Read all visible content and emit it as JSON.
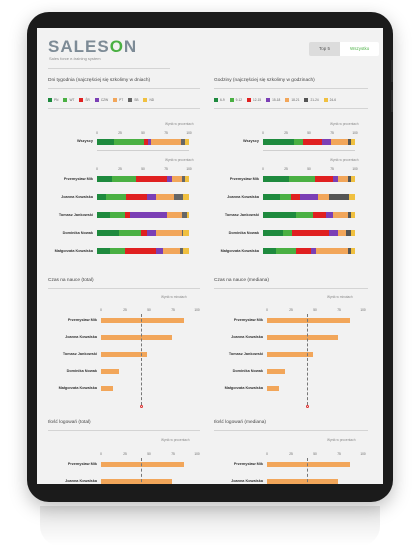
{
  "header": {
    "logo": {
      "prefix": "SALES",
      "o": "O",
      "suffix": "N"
    },
    "tagline": "Sales force e-training system",
    "tabs": [
      {
        "label": "Top 5",
        "active": false
      },
      {
        "label": "Wszystko",
        "active": true
      }
    ]
  },
  "colors": {
    "accent": "#4ab043",
    "bar": "#f2a65a",
    "days": [
      "#1e8a3e",
      "#4ab043",
      "#e02020",
      "#7b3fb5",
      "#f2a65a",
      "#666666",
      "#f0c040"
    ],
    "hours": [
      "#1e8a3e",
      "#4ab043",
      "#e02020",
      "#7b3fb5",
      "#f2a65a",
      "#555555",
      "#f0c040"
    ]
  },
  "panels": {
    "days": {
      "title": "Dni tygodnia (najczęściej się szkolimy w dniach)",
      "legend": [
        "PN",
        "WT",
        "ŚR",
        "CZW",
        "PT",
        "SB",
        "ND"
      ],
      "axis_caption": "Wynik w procentach",
      "ticks": [
        "0",
        "25",
        "50",
        "75",
        "100"
      ],
      "all": {
        "label": "Wszyscy",
        "values": [
          18,
          33,
          4,
          4,
          32,
          5,
          4
        ]
      },
      "rows": [
        {
          "label": "Przemysław Mik",
          "values": [
            16,
            26,
            34,
            6,
            10,
            4,
            4
          ]
        },
        {
          "label": "Joanna Kowalska",
          "values": [
            10,
            22,
            22,
            10,
            20,
            10,
            6
          ]
        },
        {
          "label": "Tomasz Jankowski",
          "values": [
            14,
            16,
            6,
            40,
            16,
            6,
            2
          ]
        },
        {
          "label": "Dominika Nowak",
          "values": [
            24,
            24,
            6,
            10,
            28,
            2,
            6
          ]
        },
        {
          "label": "Małgorzata Kowalska",
          "values": [
            14,
            16,
            34,
            8,
            18,
            4,
            6
          ]
        }
      ]
    },
    "hours": {
      "title": "Godziny (najczęściej się szkolimy w godzinach)",
      "legend": [
        "6-9",
        "9-12",
        "12-15",
        "15-18",
        "18-21",
        "21-24",
        "24-6"
      ],
      "axis_caption": "Wynik w procentach",
      "ticks": [
        "0",
        "25",
        "50",
        "75",
        "100"
      ],
      "all": {
        "label": "Wszyscy",
        "values": [
          34,
          10,
          20,
          10,
          18,
          4,
          4
        ]
      },
      "rows": [
        {
          "label": "Przemysław Mik",
          "values": [
            28,
            28,
            20,
            6,
            10,
            4,
            4
          ]
        },
        {
          "label": "Joanna Kowalska",
          "values": [
            18,
            12,
            10,
            20,
            12,
            22,
            6
          ]
        },
        {
          "label": "Tomasz Jankowski",
          "values": [
            36,
            18,
            14,
            8,
            16,
            4,
            4
          ]
        },
        {
          "label": "Dominika Nowak",
          "values": [
            22,
            10,
            40,
            10,
            8,
            6,
            4
          ]
        },
        {
          "label": "Małgorzata Kowalska",
          "values": [
            14,
            22,
            16,
            6,
            34,
            4,
            4
          ]
        }
      ]
    },
    "time_total": {
      "title": "Czas na nauce (total)",
      "axis_caption": "Wynik w minutach",
      "ticks": [
        "0",
        "25",
        "50",
        "75",
        "100"
      ],
      "avg": 42,
      "rows": [
        {
          "label": "Przemysław Mik",
          "value": 86
        },
        {
          "label": "Joanna Kowalska",
          "value": 74
        },
        {
          "label": "Tomasz Jankowski",
          "value": 48
        },
        {
          "label": "Dominika Nowak",
          "value": 19
        },
        {
          "label": "Małgorzata Kowalska",
          "value": 12
        }
      ]
    },
    "time_median": {
      "title": "Czas na nauce (mediana)",
      "axis_caption": "Wynik w minutach",
      "ticks": [
        "0",
        "25",
        "50",
        "75",
        "100"
      ],
      "avg": 42,
      "rows": [
        {
          "label": "Przemysław Mik",
          "value": 86
        },
        {
          "label": "Joanna Kowalska",
          "value": 74
        },
        {
          "label": "Tomasz Jankowski",
          "value": 48
        },
        {
          "label": "Dominika Nowak",
          "value": 19
        },
        {
          "label": "Małgorzata Kowalska",
          "value": 12
        }
      ]
    },
    "logins_total": {
      "title": "Ilość logowań (total)",
      "axis_caption": "Wynik w procentach",
      "ticks": [
        "0",
        "25",
        "50",
        "75",
        "100"
      ],
      "avg": 42,
      "rows": [
        {
          "label": "Przemysław Mik",
          "value": 86
        },
        {
          "label": "Joanna Kowalska",
          "value": 74
        }
      ]
    },
    "logins_median": {
      "title": "Ilość logowań (mediana)",
      "axis_caption": "Wynik w procentach",
      "ticks": [
        "0",
        "25",
        "50",
        "75",
        "100"
      ],
      "avg": 42,
      "rows": [
        {
          "label": "Przemysław Mik",
          "value": 86
        },
        {
          "label": "Joanna Kowalska",
          "value": 74
        }
      ]
    }
  }
}
